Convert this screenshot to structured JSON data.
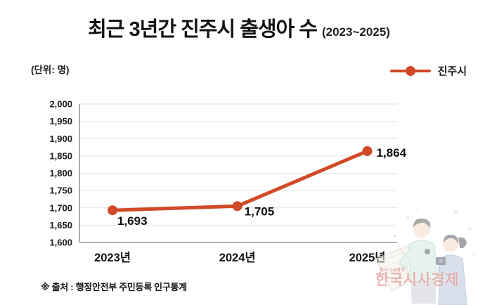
{
  "title": {
    "main": "최근 3년간 진주시 출생아 수",
    "period": "(2023~2025)"
  },
  "unit_label": "(단위: 명)",
  "legend": {
    "label": "진주시",
    "color": "#d14a28"
  },
  "source_note": "※ 출처 : 행정안전부 주민등록 인구통계",
  "watermark": {
    "logo_text": "한국시사경제"
  },
  "chart_data": {
    "type": "line",
    "title": "최근 3년간 진주시 출생아 수 (2023~2025)",
    "categories": [
      "2023년",
      "2024년",
      "2025년"
    ],
    "series": [
      {
        "name": "진주시",
        "values": [
          1693,
          1705,
          1864
        ],
        "color": "#d14a28"
      }
    ],
    "data_labels": [
      "1,693",
      "1,705",
      "1,864"
    ],
    "ylabel": "명",
    "ylim": [
      1600,
      2000
    ],
    "ytick_step": 50,
    "yticks": [
      "1,600",
      "1,650",
      "1,700",
      "1,750",
      "1,800",
      "1,850",
      "1,900",
      "1,950",
      "2,000"
    ],
    "grid": true,
    "legend_position": "top-right"
  }
}
